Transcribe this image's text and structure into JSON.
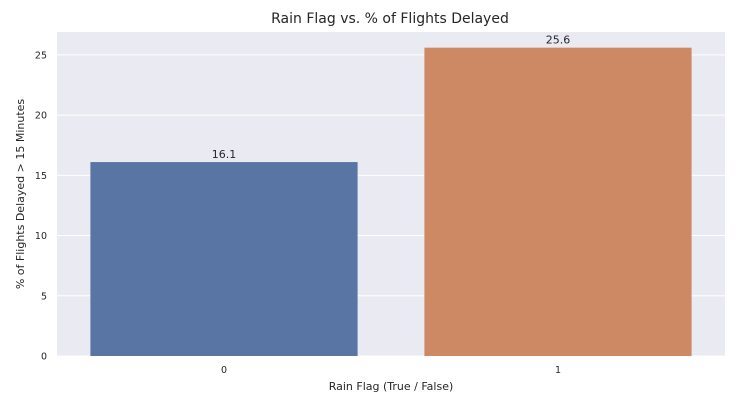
{
  "chart_data": {
    "type": "bar",
    "title": "Rain Flag vs. % of Flights Delayed",
    "xlabel": "Rain Flag (True / False)",
    "ylabel": "% of Flights Delayed > 15 Minutes",
    "categories": [
      "0",
      "1"
    ],
    "values": [
      16.1,
      25.6
    ],
    "data_labels": [
      "16.1",
      "25.6"
    ],
    "colors": [
      "#5975a4",
      "#cc8963"
    ],
    "ylim": [
      0,
      26.9
    ],
    "yticks": [
      0,
      5,
      10,
      15,
      20,
      25
    ],
    "grid": true,
    "background": "#eaeaf2",
    "gridline_color": "#ffffff"
  }
}
